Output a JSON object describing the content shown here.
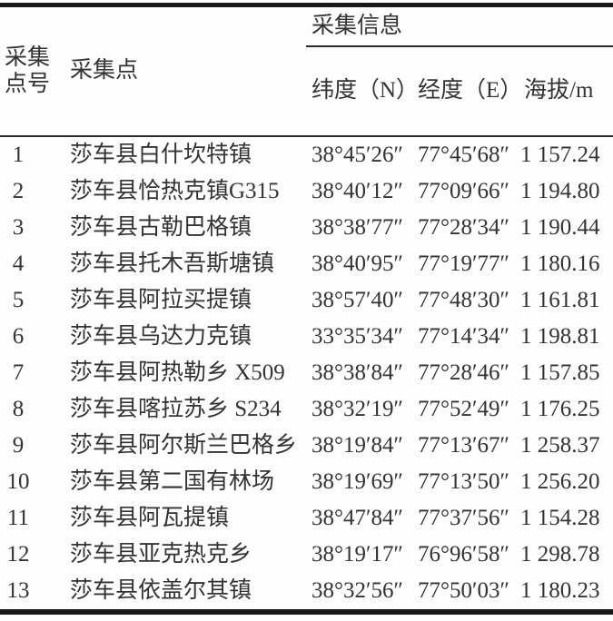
{
  "table": {
    "header": {
      "col_point_no_line1": "采集",
      "col_point_no_line2": "点号",
      "col_point": "采集点",
      "group_info": "采集信息",
      "col_latitude": "纬度（N）",
      "col_longitude": "经度（E）",
      "col_altitude": "海拔/m"
    },
    "rows": [
      {
        "id": "1",
        "name": "莎车县白什坎特镇",
        "lat": "38°45′26″",
        "lon": "77°45′68″",
        "alt": "1 157.24"
      },
      {
        "id": "2",
        "name": "莎车县恰热克镇G315",
        "lat": "38°40′12″",
        "lon": "77°09′66″",
        "alt": "1 194.80"
      },
      {
        "id": "3",
        "name": "莎车县古勒巴格镇",
        "lat": "38°38′77″",
        "lon": "77°28′34″",
        "alt": "1 190.44"
      },
      {
        "id": "4",
        "name": "莎车县托木吾斯塘镇",
        "lat": "38°40′95″",
        "lon": "77°19′77″",
        "alt": "1 180.16"
      },
      {
        "id": "5",
        "name": "莎车县阿拉买提镇",
        "lat": "38°57′40″",
        "lon": "77°48′30″",
        "alt": "1 161.81"
      },
      {
        "id": "6",
        "name": "莎车县乌达力克镇",
        "lat": "33°35′34″",
        "lon": "77°14′34″",
        "alt": "1 198.81"
      },
      {
        "id": "7",
        "name": "莎车县阿热勒乡 X509",
        "lat": "38°38′84″",
        "lon": "77°28′46″",
        "alt": "1 157.85"
      },
      {
        "id": "8",
        "name": "莎车县喀拉苏乡 S234",
        "lat": "38°32′19″",
        "lon": "77°52′49″",
        "alt": "1 176.25"
      },
      {
        "id": "9",
        "name": "莎车县阿尔斯兰巴格乡",
        "lat": "38°19′84″",
        "lon": "77°13′67″",
        "alt": "1 258.37"
      },
      {
        "id": "10",
        "name": "莎车县第二国有林场",
        "lat": "38°19′69″",
        "lon": "77°13′50″",
        "alt": "1 256.20"
      },
      {
        "id": "11",
        "name": "莎车县阿瓦提镇",
        "lat": "38°47′84″",
        "lon": "77°37′56″",
        "alt": "1 154.28"
      },
      {
        "id": "12",
        "name": "莎车县亚克热克乡",
        "lat": "38°19′17″",
        "lon": "76°96′58″",
        "alt": "1 298.78"
      },
      {
        "id": "13",
        "name": "莎车县依盖尔其镇",
        "lat": "38°32′56″",
        "lon": "77°50′03″",
        "alt": "1 180.23"
      }
    ],
    "colors": {
      "text": "#333333",
      "thick_rule": "#1a1a1a",
      "thin_rule": "#2b2b2b",
      "background": "#fdfdfd"
    }
  }
}
